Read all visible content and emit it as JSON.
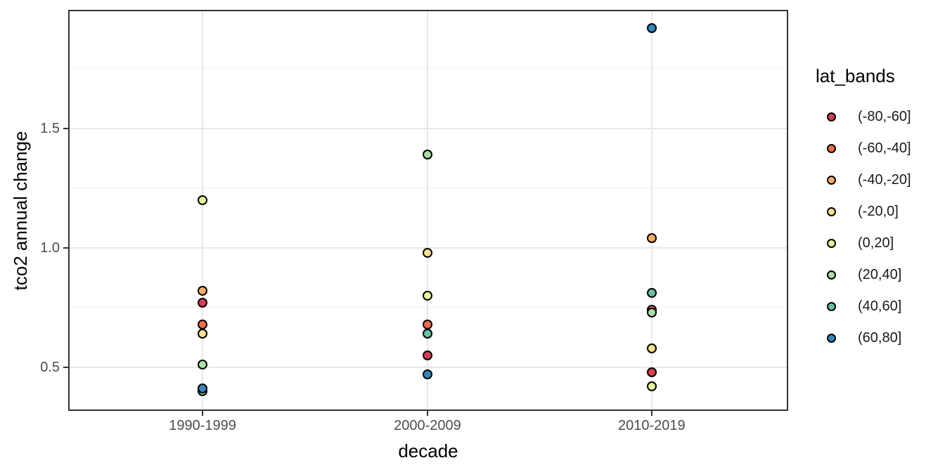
{
  "figure": {
    "background": "#ffffff",
    "panel_border_color": "#333333",
    "grid_major_color": "#e7e7e7",
    "grid_minor_color": "#f2f2f2",
    "tick_label_color": "#4d4d4d",
    "axis_title_color": "#000000"
  },
  "chart_data": {
    "type": "scatter",
    "title": "",
    "xlabel": "decade",
    "ylabel": "tco2 annual change",
    "legend_title": "lat_bands",
    "legend_position": "right",
    "categories": [
      "1990-1999",
      "2000-2009",
      "2010-2019"
    ],
    "y_ticks": [
      0.5,
      1.0,
      1.5
    ],
    "y_tick_labels": [
      "0.5",
      "1.0",
      "1.5"
    ],
    "y_minor_ticks": [
      0.75,
      1.25,
      1.75
    ],
    "ylim": [
      0.32,
      1.994
    ],
    "grid": "horizontal major+minor, vertical major at each category",
    "series": [
      {
        "name": "(-80,-60]",
        "color": "#d53e4f",
        "values": [
          0.77,
          0.55,
          0.48
        ]
      },
      {
        "name": "(-60,-40]",
        "color": "#f46d43",
        "values": [
          0.68,
          0.68,
          0.74
        ]
      },
      {
        "name": "(-40,-20]",
        "color": "#fdae61",
        "values": [
          0.82,
          null,
          1.04
        ]
      },
      {
        "name": "(-20,0]",
        "color": "#fee08b",
        "values": [
          0.64,
          0.98,
          0.58
        ]
      },
      {
        "name": "(0,20]",
        "color": "#e6f598",
        "values": [
          1.2,
          0.8,
          0.42
        ]
      },
      {
        "name": "(20,40]",
        "color": "#abdda4",
        "values": [
          0.51,
          1.39,
          0.73
        ]
      },
      {
        "name": "(40,60]",
        "color": "#66c2a5",
        "values": [
          0.4,
          0.64,
          0.81
        ]
      },
      {
        "name": "(60,80]",
        "color": "#3288bd",
        "values": [
          0.41,
          0.47,
          1.92
        ]
      }
    ],
    "notes": "(-40,-20] point not visible for 2000-2009 (overplotted); (40,60] mostly hidden behind (60,80] in 1990-1999; (-60,-40] mostly hidden behind (20,40] in 2010-2019"
  }
}
